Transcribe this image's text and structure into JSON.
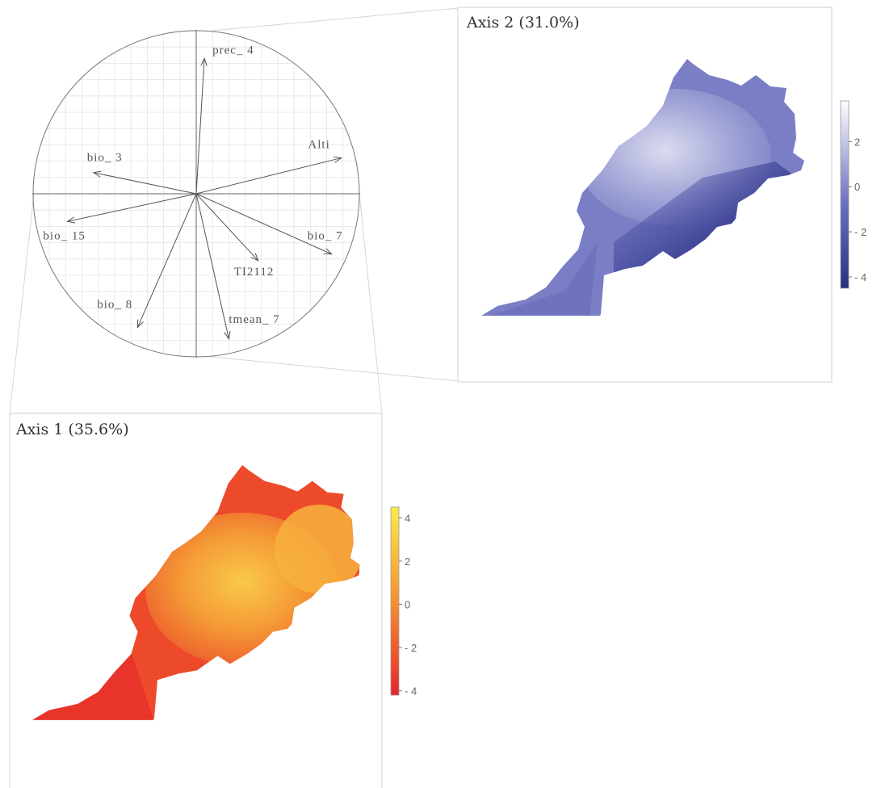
{
  "chart_data": [
    {
      "type": "correlation-circle",
      "grid": true,
      "variables": [
        {
          "name": "prec_4",
          "x": 0.05,
          "y": 0.83
        },
        {
          "name": "Alti",
          "x": 0.89,
          "y": 0.22
        },
        {
          "name": "bio_3",
          "x": -0.63,
          "y": 0.13
        },
        {
          "name": "bio_15",
          "x": -0.79,
          "y": -0.17
        },
        {
          "name": "bio_7",
          "x": 0.83,
          "y": -0.37
        },
        {
          "name": "TI2112",
          "x": 0.38,
          "y": -0.41
        },
        {
          "name": "bio_8",
          "x": -0.36,
          "y": -0.82
        },
        {
          "name": "tmean_7",
          "x": 0.2,
          "y": -0.89
        }
      ]
    },
    {
      "type": "heatmap",
      "title": "Axis 2 (31.0%)",
      "colorbar": {
        "ticks": [
          "2",
          "0",
          "- 2",
          "- 4"
        ],
        "range": [
          -4.5,
          3.8
        ],
        "colors": [
          "#28307e",
          "#ffffff"
        ]
      }
    },
    {
      "type": "heatmap",
      "title": "Axis 1 (35.6%)",
      "colorbar": {
        "ticks": [
          "4",
          "2",
          "0",
          "- 2",
          "- 4"
        ],
        "range": [
          -4.2,
          4.5
        ],
        "colors": [
          "#e8262a",
          "#f79130",
          "#faeb48"
        ]
      }
    }
  ]
}
